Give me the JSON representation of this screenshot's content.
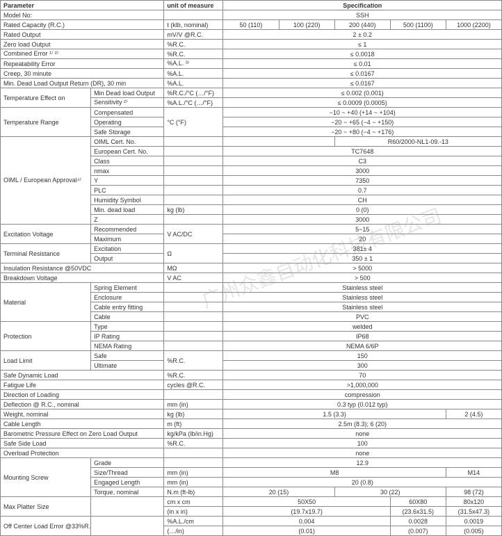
{
  "header": {
    "param": "Parameter",
    "unit": "unit of measure",
    "spec": "Specification"
  },
  "cols": {
    "c1": "50 (110)",
    "c2": "100 (220)",
    "c3": "200 (440)",
    "c4": "500 (1100)",
    "c5": "1000 (2200)"
  },
  "rows": {
    "model": {
      "p": "Model No:",
      "u": "",
      "v": "SSH"
    },
    "rc": {
      "p": "Rated Capacity (R.C.)",
      "u": "t (klb, nominal)"
    },
    "ro": {
      "p": "Rated Output",
      "u": "mV/V @R.C.",
      "v": "2 ± 0.2"
    },
    "zlo": {
      "p": "Zero load Output",
      "u": "%R.C.",
      "v": "≤ 1"
    },
    "ce": {
      "p": "Combined Error ¹⁾ ²⁾",
      "u": "%R.C.",
      "v": "≤ 0.0018"
    },
    "re": {
      "p": "Repeatability Error",
      "u": "%A.L. ³⁾",
      "v": "≤ 0.01"
    },
    "creep": {
      "p": "Creep, 30 minute",
      "u": "%A.L.",
      "v": "≤ 0.0167"
    },
    "dr": {
      "p": "Min. Dead Load Output Return (DR), 30 min",
      "u": "%A.L.",
      "v": "≤ 0.0167"
    },
    "te": {
      "p": "Temperature Effect on",
      "s1": "Min Dead load Output",
      "u1": "%R.C./°C (…/°F)",
      "v1": "≤ 0.002 (0.001)",
      "s2": "Sensitivity ²⁾",
      "u2": "%A.L./°C (…/°F)",
      "v2": "≤ 0.0009 (0.0005)"
    },
    "tr": {
      "p": "Temperature Range",
      "s1": "Compensated",
      "v1": "−10 ~ +40 (+14 ~ +104)",
      "s2": "Operating",
      "v2": "−20 ~ +65 (−4 ~ +150)",
      "s3": "Safe Storage",
      "v3": "−20 ~ +80 (−4 ~ +176)",
      "u": "°C (°F)"
    },
    "oiml": {
      "p": "OIML / European Approval⁴⁾",
      "s1": "OIML Cert. No.",
      "v1": "R60/2000-NL1-09.-13",
      "s2": "European Cert. No.",
      "v2": "TC7648",
      "s3": "Class",
      "v3": "C3",
      "s4": "nmax",
      "v4": "3000",
      "s5": "Y",
      "v5": "7350",
      "s6": "PLC",
      "v6": "0.7",
      "s7": "Humidity Symbol",
      "v7": "CH",
      "s8": "Min. dead load",
      "u8": "kg (lb)",
      "v8": "0 (0)",
      "s9": "Z",
      "v9": "3000"
    },
    "ev": {
      "p": "Excitation Voltage",
      "s1": "Recommended",
      "v1": "5~15",
      "s2": "Maximum",
      "v2": "20",
      "u": "V AC/DC"
    },
    "trm": {
      "p": "Terminal Resistance",
      "s1": "Excitation",
      "v1": "381± 4",
      "s2": "Output",
      "v2": "350 ± 1",
      "u": "Ω"
    },
    "ir": {
      "p": "Insulation Resistance @50VDC",
      "u": "MΩ",
      "v": "> 5000"
    },
    "bv": {
      "p": "Breakdown Voltage",
      "u": "V AC",
      "v": "> 500"
    },
    "mat": {
      "p": "Material",
      "s1": "Spring Element",
      "v1": "Stainless steel",
      "s2": "Enclosure",
      "v2": "Stainless steel",
      "s3": "Cable entry fitting",
      "v3": "Stainless steel",
      "s4": "Cable",
      "v4": "PVC"
    },
    "prot": {
      "p": "Protection",
      "s1": "Type",
      "v1": "welded",
      "s2": "IP Rating",
      "v2": "IP68",
      "s3": "NEMA Rating",
      "v3": "NEMA 6/6P"
    },
    "ll": {
      "p": "Load Limit",
      "s1": "Safe",
      "v1": "150",
      "s2": "Ultimate",
      "v2": "300",
      "u": "%R.C."
    },
    "sdl": {
      "p": "Safe Dynamic Load",
      "u": "%R.C.",
      "v": "70"
    },
    "fl": {
      "p": "Fatigue Life",
      "u": "cycles @R.C.",
      "v": ">1,000,000"
    },
    "dol": {
      "p": "Direction of Loading",
      "u": "",
      "v": "compression"
    },
    "def": {
      "p": "Deflection @ R.C., nominal",
      "u": "mm (in)",
      "v": "0.3 typ (0.012 typ)"
    },
    "wt": {
      "p": "Weight, nominal",
      "u": "kg (lb)",
      "v1": "1.5 (3.3)",
      "v2": "2 (4.5)"
    },
    "cl": {
      "p": "Cable Length",
      "u": "m (ft)",
      "v": "2.5m (8.3); 6 (20)"
    },
    "bp": {
      "p": "Barometric Pressure Effect on Zero Load Output",
      "u": "kg/kPa (lb/in.Hg)",
      "v": "none"
    },
    "ssl": {
      "p": "Safe Side Load",
      "u": "%R.C.",
      "v": "100"
    },
    "op": {
      "p": "Overload Protection",
      "u": "",
      "v": "none"
    },
    "ms": {
      "p": "Mounting Screw",
      "s1": "Grade",
      "v1": "12.9",
      "s2": "Size/Thread",
      "u2": "mm (in)",
      "v2a": "M8",
      "v2b": "M14",
      "s3": "Engaged Length",
      "u3": "mm (in)",
      "v3": "20 (0.8)",
      "s4": "Torque, nominal",
      "u4": "N.m (ft-lb)",
      "v4a": "20 (15)",
      "v4b": "30 (22)",
      "v4c": "98 (72)"
    },
    "mps": {
      "p": "Max Platter Size",
      "u1": "cm x cm",
      "u2": "(in x in)",
      "v1a": "50X50",
      "v1b": "(19.7x19.7)",
      "v2a": "60X80",
      "v2b": "(23.6x31.5)",
      "v3a": "80x120",
      "v3b": "(31.5x47.3)"
    },
    "oce": {
      "p": "Off Center Load Error @33%R.C.",
      "u1": "%A.L./cm",
      "u2": "(…/in)",
      "v1a": "0.004",
      "v1b": "(0.01)",
      "v2a": "0.0028",
      "v2b": "(0.007)",
      "v3a": "0.0019",
      "v3b": "(0.005)"
    }
  },
  "watermark": "广州众鑫自动化科技有限公司"
}
